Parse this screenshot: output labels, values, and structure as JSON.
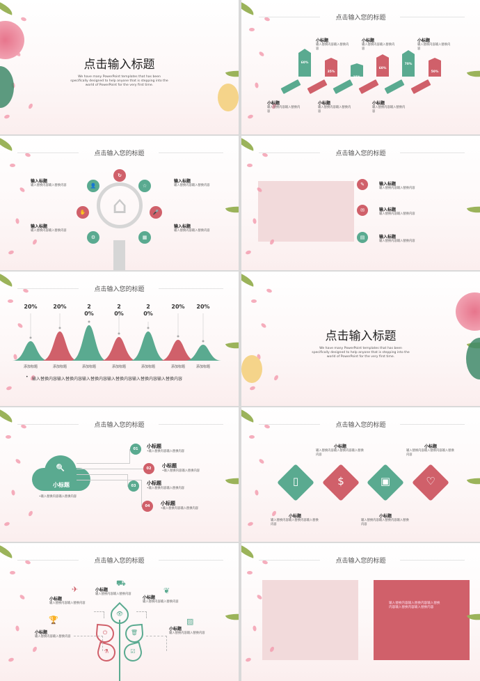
{
  "colors": {
    "green": "#5aaa90",
    "red": "#d0606a",
    "pink": "#f2dadb"
  },
  "heading": "点击输入您的标题",
  "slide1": {
    "title": "点击输入标题",
    "subtitle": "We have many PowerPoint templates that has been specifically designed to help anyone that is stepping into the world of PowerPoint for the very first time."
  },
  "slide2": {
    "tags": [
      "60%",
      "35%",
      "15%",
      "60%",
      "70%",
      "50%"
    ],
    "labels": [
      {
        "title": "小标题",
        "text": "输入替换内容输入替换内容"
      },
      {
        "title": "小标题",
        "text": "输入替换内容输入替换内容"
      },
      {
        "title": "小标题",
        "text": "输入替换内容输入替换内容"
      },
      {
        "title": "小标题",
        "text": "输入替换内容输入替换内容"
      },
      {
        "title": "小标题",
        "text": "输入替换内容输入替换内容"
      },
      {
        "title": "小标题",
        "text": "输入替换内容输入替换内容"
      }
    ]
  },
  "slide3": {
    "icons": [
      "refresh-icon",
      "user-add-icon",
      "star-icon",
      "hand-icon",
      "microphone-icon",
      "gear-icon",
      "chart-icon"
    ],
    "items": [
      {
        "title": "输入标题",
        "text": "输入替换内容输入替换内容"
      },
      {
        "title": "输入标题",
        "text": "输入替换内容输入替换内容"
      },
      {
        "title": "输入标题",
        "text": "输入替换内容输入替换内容"
      },
      {
        "title": "输入标题",
        "text": "输入替换内容输入替换内容"
      }
    ]
  },
  "slide4": {
    "items": [
      {
        "icon": "edit-icon",
        "title": "输入标题",
        "text": "输入替换内容输入替换内容"
      },
      {
        "icon": "mail-icon",
        "title": "输入标题",
        "text": "输入替换内容输入替换内容"
      },
      {
        "icon": "book-icon",
        "title": "输入标题",
        "text": "输入替换内容输入替换内容"
      }
    ]
  },
  "slide5": {
    "percents": [
      "20%",
      "20%",
      "20%",
      "20%",
      "20%",
      "20%",
      "20%"
    ],
    "labels": [
      "添加标题",
      "添加标题",
      "添加标题",
      "添加标题",
      "添加标题",
      "添加标题",
      "添加标题"
    ],
    "bullet": "输入替换内容输入替换内容输入替换内容输入替换内容输入替换内容输入替换内容"
  },
  "slide6": {
    "title": "点击输入标题",
    "subtitle": "We have many PowerPoint templates that has been specifically designed to help anyone that is stepping into the world of PowerPoint for the very first time."
  },
  "slide7": {
    "cloud_title": "小标题",
    "cloud_text": "•输入替换内容输入替换内容",
    "items": [
      {
        "num": "01",
        "title": "小标题",
        "text": "•输入替换内容输入替换内容"
      },
      {
        "num": "02",
        "title": "小标题",
        "text": "•输入替换内容输入替换内容"
      },
      {
        "num": "03",
        "title": "小标题",
        "text": "•输入替换内容输入替换内容"
      },
      {
        "num": "04",
        "title": "小标题",
        "text": "•输入替换内容输入替换内容"
      }
    ]
  },
  "slide8": {
    "icons": [
      "tablet-icon",
      "money-icon",
      "news-icon",
      "heart-icon"
    ],
    "labels": [
      {
        "title": "小标题",
        "text": "输入替换内容输入替换内容输入替换内容"
      },
      {
        "title": "小标题",
        "text": "输入替换内容输入替换内容输入替换内容"
      },
      {
        "title": "小标题",
        "text": "输入替换内容输入替换内容输入替换内容"
      },
      {
        "title": "小标题",
        "text": "输入替换内容输入替换内容输入替换内容"
      }
    ]
  },
  "slide9": {
    "labels": [
      {
        "title": "小标题",
        "text": "输入替换内容输入替换内容",
        "icon": "airplane-icon"
      },
      {
        "title": "小标题",
        "text": "输入替换内容输入替换内容",
        "icon": "truck-icon"
      },
      {
        "title": "小标题",
        "text": "输入替换内容输入替换内容",
        "icon": "leaf-icon"
      },
      {
        "title": "小标题",
        "text": "输入替换内容输入替换内容",
        "icon": "trophy-icon"
      },
      {
        "title": "小标题",
        "text": "输入替换内容输入替换内容",
        "icon": "image-icon"
      }
    ]
  },
  "slide10": {
    "text": "输入替换内容输入替换内容输入替换内容输入替换内容输入替换内容"
  }
}
